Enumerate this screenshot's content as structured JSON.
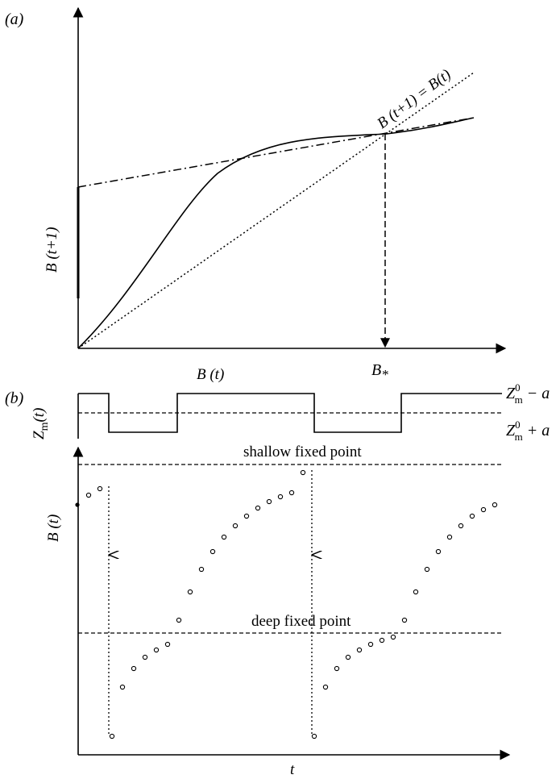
{
  "panel_a": {
    "label": "(a)",
    "ylabel": "B (t+1)",
    "xlabel": "B (t)",
    "identity_label": "B (t+1) = B(t)",
    "fixed_point_label": "B",
    "fixed_point_subscript": "*"
  },
  "panel_b": {
    "label": "(b)",
    "forcing": {
      "ylabel": "Z",
      "ylabel_sub": "m",
      "ylabel_arg": "(t)",
      "upper_label": {
        "base": "Z",
        "sup": "0",
        "sub": "m",
        "rest": " − a"
      },
      "lower_label": {
        "base": "Z",
        "sup": "0",
        "sub": "m",
        "rest": " + a"
      }
    },
    "ylabel": "B (t)",
    "xlabel": "t",
    "shallow_label": "shallow fixed point",
    "deep_label": "deep fixed point"
  },
  "style": {
    "ink": "#000000",
    "background": "#ffffff"
  }
}
